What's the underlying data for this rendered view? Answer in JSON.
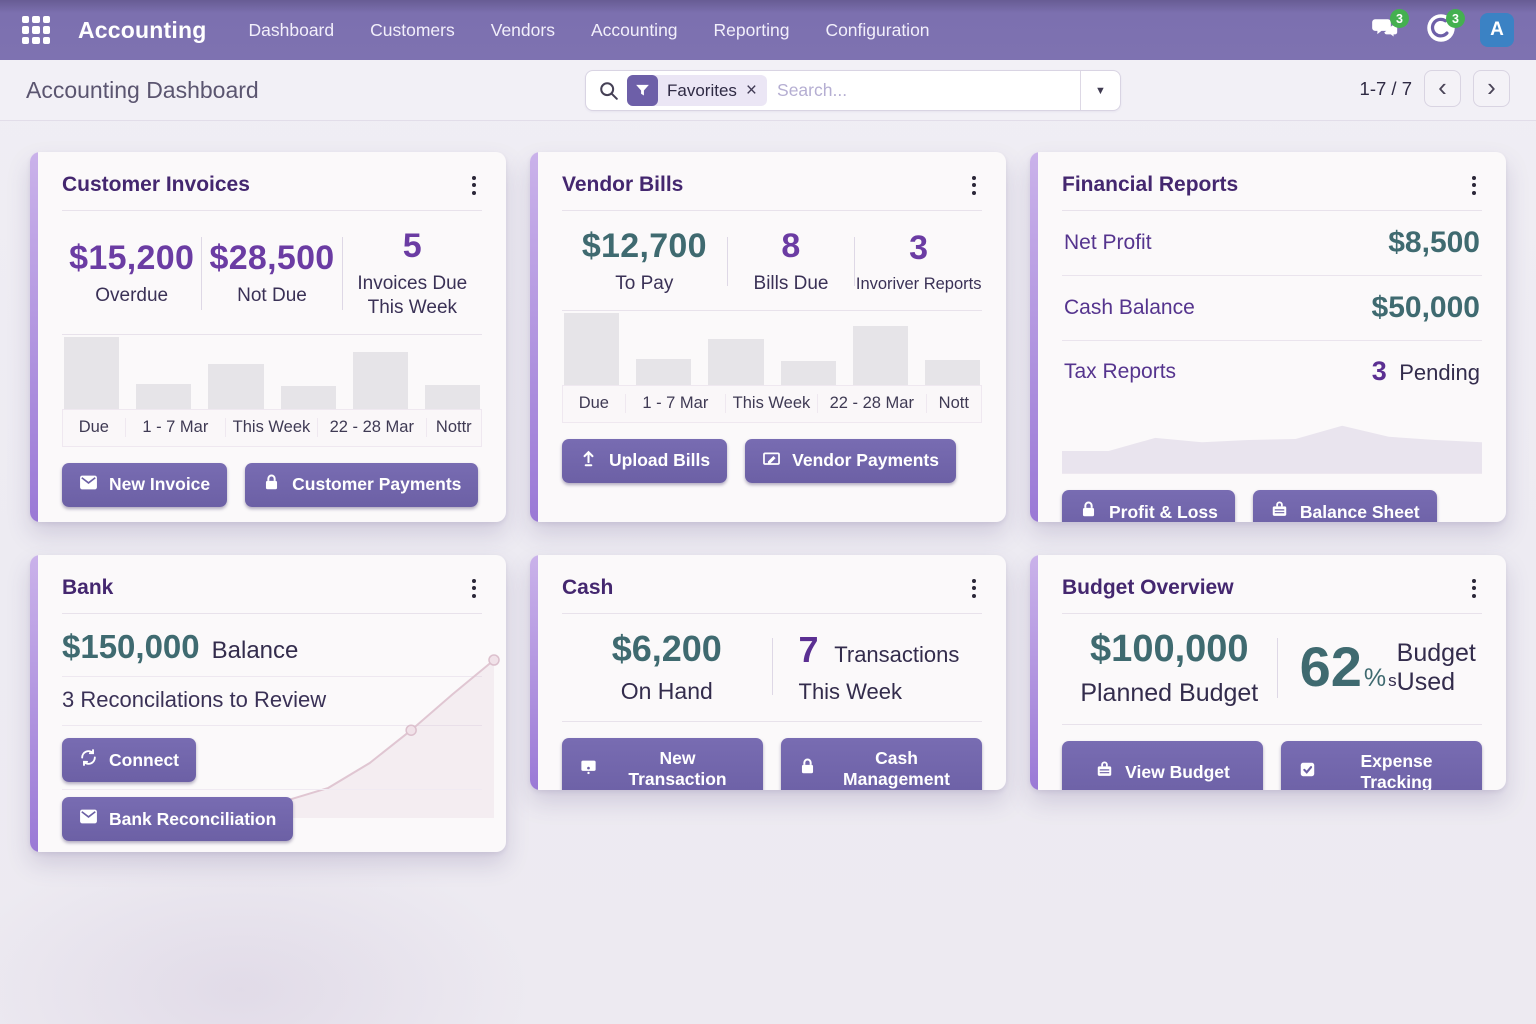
{
  "colors": {
    "navbar_purple": "#7e72b1",
    "button_purple": "#7166ab",
    "card_accent_top": "#cab2ea",
    "card_accent_bottom": "#9a79d6",
    "value_purple": "#6b3ca3",
    "value_teal": "#3f6a70",
    "title_purple": "#44276f",
    "badge_green": "#44b050",
    "avatar_blue": "#3b82c4",
    "bar_gray": "#e6e4e8"
  },
  "icons": [
    "apps-grid-icon",
    "chat-icon",
    "clock-icon",
    "search-icon",
    "filter-funnel-icon",
    "close-icon",
    "caret-down-icon",
    "kebab-menu-icon",
    "envelope-icon",
    "lock-icon",
    "upload-icon",
    "checkbook-icon",
    "sync-icon",
    "monitor-icon",
    "briefcase-icon",
    "check-square-icon",
    "chevron-left-icon",
    "chevron-right-icon"
  ],
  "navbar": {
    "app_name": "Accounting",
    "menu": [
      {
        "label": "Dashboard"
      },
      {
        "label": "Customers"
      },
      {
        "label": "Vendors"
      },
      {
        "label": "Accounting"
      },
      {
        "label": "Reporting"
      },
      {
        "label": "Configuration"
      }
    ],
    "messages_badge": "3",
    "activities_badge": "3",
    "avatar_initial": "A"
  },
  "control_panel": {
    "breadcrumb": "Accounting Dashboard",
    "filter_chip_label": "Favorites",
    "filter_chip_close": "×",
    "search_placeholder": "Search...",
    "pager_text": "1-7 / 7",
    "prev": "‹",
    "next": "›"
  },
  "cards": {
    "customer_invoices": {
      "title": "Customer Invoices",
      "stats": [
        {
          "value": "$15,200",
          "label": "Overdue"
        },
        {
          "value": "$28,500",
          "label": "Not Due"
        },
        {
          "value": "5",
          "label": "Invoices Due This Week"
        }
      ],
      "chart_labels": [
        "Due",
        "1 - 7 Mar",
        "This Week",
        "22 - 28 Mar",
        "Nottr"
      ],
      "buttons": [
        {
          "label": "New Invoice",
          "icon": "envelope-icon"
        },
        {
          "label": "Customer Payments",
          "icon": "lock-icon"
        }
      ]
    },
    "vendor_bills": {
      "title": "Vendor Bills",
      "stats": [
        {
          "value": "$12,700",
          "label": "To Pay"
        },
        {
          "value": "8",
          "label": "Bills Due"
        },
        {
          "value": "3",
          "label": "Invoriver Reports"
        }
      ],
      "chart_labels": [
        "Due",
        "1 - 7 Mar",
        "This Week",
        "22 - 28 Mar",
        "Nott"
      ],
      "buttons": [
        {
          "label": "Upload Bills",
          "icon": "upload-icon"
        },
        {
          "label": "Vendor Payments",
          "icon": "checkbook-icon"
        }
      ]
    },
    "financial_reports": {
      "title": "Financial Reports",
      "rows": [
        {
          "label": "Net Profit",
          "value": "$8,500"
        },
        {
          "label": "Cash Balance",
          "value": "$50,000"
        },
        {
          "label": "Tax Reports",
          "value_number": "3",
          "value_text": "Pending"
        }
      ],
      "buttons": [
        {
          "label": "Profit & Loss",
          "icon": "lock-icon"
        },
        {
          "label": "Balance Sheet",
          "icon": "briefcase-icon"
        }
      ]
    },
    "bank": {
      "title": "Bank",
      "balance_value": "$150,000",
      "balance_label": "Balance",
      "note": "3 Reconcilations to Review",
      "buttons": [
        {
          "label": "Connect",
          "icon": "sync-icon"
        },
        {
          "label": "Bank Reconciliation",
          "icon": "envelope-icon"
        }
      ]
    },
    "cash": {
      "title": "Cash",
      "stat_left": {
        "value": "$6,200",
        "label": "On Hand"
      },
      "stat_right": {
        "number": "7",
        "text": "Transactions",
        "sub": "This Week"
      },
      "buttons": [
        {
          "label": "New Transaction",
          "icon": "monitor-icon"
        },
        {
          "label": "Cash Management",
          "icon": "lock-icon"
        }
      ]
    },
    "budget_overview": {
      "title": "Budget Overview",
      "stat_left": {
        "value": "$100,000",
        "label": "Planned Budget"
      },
      "stat_right": {
        "number": "62",
        "unit": "%",
        "suffix": "s",
        "label": "Budget Used"
      },
      "buttons": [
        {
          "label": "View Budget",
          "icon": "briefcase-icon"
        },
        {
          "label": "Expense Tracking",
          "icon": "check-square-icon"
        }
      ]
    }
  },
  "chart_data": [
    {
      "type": "bar",
      "card": "Customer Invoices",
      "categories": [
        "Due",
        "1 - 7 Mar",
        "This Week",
        "22 - 28 Mar",
        "Nottr"
      ],
      "values": [
        100,
        34,
        62,
        31,
        79,
        33
      ],
      "ylim": [
        0,
        100
      ],
      "grid": false,
      "note": "six decorative light-gray bars above a five-cell label strip"
    },
    {
      "type": "bar",
      "card": "Vendor Bills",
      "categories": [
        "Due",
        "1 - 7 Mar",
        "This Week",
        "22 - 28 Mar",
        "Nott"
      ],
      "values": [
        100,
        36,
        64,
        33,
        82,
        35
      ],
      "ylim": [
        0,
        100
      ],
      "grid": false,
      "note": "six decorative light-gray bars above a five-cell label strip"
    },
    {
      "type": "area",
      "card": "Financial Reports",
      "values": [
        40,
        40,
        64,
        56,
        60,
        62,
        86,
        66,
        60,
        56
      ],
      "note": "very faint lavender-gray silhouette area chart, no axes"
    },
    {
      "type": "line",
      "card": "Bank",
      "values": [
        2,
        5,
        10,
        18,
        34,
        55,
        78,
        100
      ],
      "markers": [
        5,
        7
      ],
      "note": "faint pink rising sparkline with two dot markers, no axes"
    }
  ]
}
